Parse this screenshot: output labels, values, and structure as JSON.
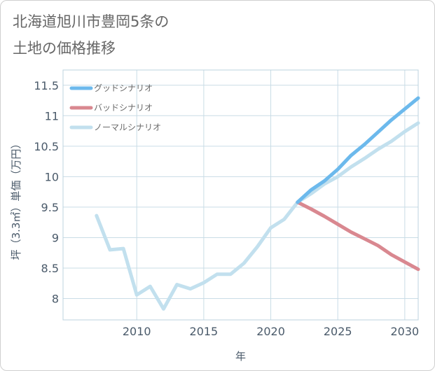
{
  "title_line1": "北海道旭川市豊岡5条の",
  "title_line2": "土地の価格推移",
  "chart_data": {
    "type": "line",
    "xlabel": "年",
    "ylabel": "坪（3.3㎡）単価（万円）",
    "xlim": [
      2004.5,
      2031
    ],
    "ylim": [
      7.65,
      11.75
    ],
    "x_ticks": [
      2010,
      2015,
      2020,
      2025,
      2030
    ],
    "y_ticks": [
      8,
      8.5,
      9,
      9.5,
      10,
      10.5,
      11,
      11.5
    ],
    "x_tick_labels": [
      "2010",
      "2015",
      "2020",
      "2025",
      "2030"
    ],
    "y_tick_labels": [
      "8",
      "8.5",
      "9",
      "9.5",
      "10",
      "10.5",
      "11",
      "11.5"
    ],
    "grid": true,
    "legend_position": "top-left",
    "series": [
      {
        "name": "グッドシナリオ",
        "color": "#6cb9ec",
        "x": [
          2022,
          2023,
          2024,
          2025,
          2026,
          2027,
          2028,
          2029,
          2030,
          2031
        ],
        "y": [
          9.58,
          9.78,
          9.93,
          10.12,
          10.35,
          10.53,
          10.73,
          10.93,
          11.11,
          11.29
        ]
      },
      {
        "name": "バッドシナリオ",
        "color": "#d98890",
        "x": [
          2022,
          2023,
          2024,
          2025,
          2026,
          2027,
          2028,
          2029,
          2030,
          2031
        ],
        "y": [
          9.58,
          9.47,
          9.35,
          9.22,
          9.09,
          8.98,
          8.87,
          8.72,
          8.6,
          8.48
        ]
      },
      {
        "name": "ノーマルシナリオ",
        "color": "#c2e0ee",
        "x": [
          2007,
          2008,
          2009,
          2010,
          2011,
          2012,
          2013,
          2014,
          2015,
          2016,
          2017,
          2018,
          2019,
          2020,
          2021,
          2022,
          2023,
          2024,
          2025,
          2026,
          2027,
          2028,
          2029,
          2030,
          2031
        ],
        "y": [
          9.36,
          8.8,
          8.82,
          8.06,
          8.2,
          7.83,
          8.23,
          8.16,
          8.26,
          8.4,
          8.4,
          8.58,
          8.85,
          9.16,
          9.3,
          9.58,
          9.72,
          9.88,
          10.0,
          10.16,
          10.3,
          10.45,
          10.58,
          10.74,
          10.88
        ]
      }
    ]
  }
}
